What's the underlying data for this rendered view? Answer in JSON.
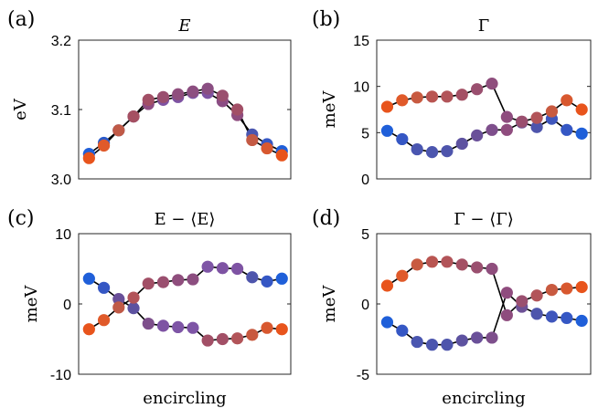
{
  "figure": {
    "xlabel_bottom": "encircling"
  },
  "chart_data": [
    {
      "panel_label": "(a)",
      "type": "scatter",
      "title": "E",
      "ylabel": "eV",
      "ylim": [
        3.0,
        3.2
      ],
      "yticks": [
        "3.0",
        "3.1",
        "3.2"
      ],
      "ytick_values": [
        3.0,
        3.1,
        3.2
      ],
      "x": [
        1,
        2,
        3,
        4,
        5,
        6,
        7,
        8,
        9,
        10,
        11,
        12,
        13,
        14
      ],
      "series": [
        {
          "values": [
            3.036,
            3.052,
            3.07,
            3.09,
            3.108,
            3.114,
            3.118,
            3.124,
            3.124,
            3.112,
            3.092,
            3.064,
            3.05,
            3.04
          ],
          "colors": [
            "#1f5fd9",
            "#2a5ac9",
            "#4a56b0",
            "#7a4e8d",
            "#8f4c82",
            "#7e52a2",
            "#7e53a3",
            "#7e55a6",
            "#7e53a3",
            "#8b4d84",
            "#8e4c7e",
            "#4a56b0",
            "#3557c4",
            "#1f5fd9"
          ]
        },
        {
          "values": [
            3.03,
            3.048,
            3.07,
            3.09,
            3.114,
            3.118,
            3.122,
            3.126,
            3.13,
            3.12,
            3.1,
            3.056,
            3.044,
            3.034
          ],
          "colors": [
            "#e8541c",
            "#e05a2a",
            "#c05a47",
            "#a55062",
            "#a24f66",
            "#9a4f6f",
            "#8f4e7d",
            "#8c4e80",
            "#8a4e82",
            "#9a4f6f",
            "#a24f66",
            "#c45a44",
            "#d8582f",
            "#e8541c"
          ]
        }
      ]
    },
    {
      "panel_label": "(b)",
      "type": "scatter",
      "title": "Γ",
      "ylabel": "meV",
      "ylim": [
        0,
        15
      ],
      "yticks": [
        "0",
        "5",
        "10",
        "15"
      ],
      "ytick_values": [
        0,
        5,
        10,
        15
      ],
      "x": [
        1,
        2,
        3,
        4,
        5,
        6,
        7,
        8,
        9,
        10,
        11,
        12,
        13,
        14
      ],
      "series": [
        {
          "values": [
            5.2,
            4.3,
            3.2,
            2.9,
            3.0,
            3.8,
            4.7,
            5.3,
            5.3,
            6.1,
            5.6,
            6.5,
            5.3,
            4.9
          ],
          "colors": [
            "#1f5fd9",
            "#3557c4",
            "#4a56b0",
            "#4c56ae",
            "#4e55ac",
            "#5d52a0",
            "#6a5099",
            "#7e4f8c",
            "#8f4c7e",
            "#6d5196",
            "#4e55ac",
            "#3f56bc",
            "#3557c4",
            "#1f5fd9"
          ]
        },
        {
          "values": [
            7.8,
            8.5,
            8.8,
            8.9,
            8.9,
            9.1,
            9.7,
            10.3,
            6.7,
            6.2,
            6.6,
            7.3,
            8.5,
            7.5
          ],
          "colors": [
            "#e8541c",
            "#e05a2a",
            "#c85a40",
            "#b95551",
            "#b25459",
            "#a45064",
            "#9a4f6f",
            "#8f4e7d",
            "#8e4c7e",
            "#9a4f6f",
            "#b25459",
            "#c85a40",
            "#d8582f",
            "#e8541c"
          ]
        }
      ]
    },
    {
      "panel_label": "(c)",
      "type": "scatter",
      "title": "E − ⟨E⟩",
      "ylabel": "meV",
      "ylim": [
        -10,
        10
      ],
      "yticks": [
        "-10",
        "0",
        "10"
      ],
      "ytick_values": [
        -10,
        0,
        10
      ],
      "x": [
        1,
        2,
        3,
        4,
        5,
        6,
        7,
        8,
        9,
        10,
        11,
        12,
        13,
        14
      ],
      "series": [
        {
          "values": [
            3.6,
            2.3,
            0.7,
            -0.6,
            -2.8,
            -3.1,
            -3.3,
            -3.4,
            -5.2,
            -5.0,
            -4.9,
            -4.4,
            -3.4,
            -3.6
          ],
          "colors": [
            "#1f5fd9",
            "#3557c4",
            "#6a5099",
            "#5d52a0",
            "#7e4f8c",
            "#7e53a3",
            "#7e55a6",
            "#7e55a6",
            "#a24f66",
            "#a24f66",
            "#b25459",
            "#c85a40",
            "#d8582f",
            "#e8541c"
          ]
        },
        {
          "values": [
            -3.6,
            -2.3,
            -0.5,
            0.9,
            2.9,
            3.1,
            3.4,
            3.5,
            5.3,
            5.1,
            5.0,
            3.8,
            3.2,
            3.6
          ],
          "colors": [
            "#e8541c",
            "#e05a2a",
            "#c05a47",
            "#b25459",
            "#a24f66",
            "#9a4f6f",
            "#8f4e7d",
            "#8c4e80",
            "#7e55a6",
            "#7e53a3",
            "#7e53a3",
            "#4e55ac",
            "#3557c4",
            "#1f5fd9"
          ]
        }
      ]
    },
    {
      "panel_label": "(d)",
      "type": "scatter",
      "title": "Γ − ⟨Γ⟩",
      "ylabel": "meV",
      "ylim": [
        -5,
        5
      ],
      "yticks": [
        "-5",
        "0",
        "5"
      ],
      "ytick_values": [
        -5,
        0,
        5
      ],
      "x": [
        1,
        2,
        3,
        4,
        5,
        6,
        7,
        8,
        9,
        10,
        11,
        12,
        13,
        14
      ],
      "series": [
        {
          "values": [
            -1.3,
            -1.9,
            -2.7,
            -2.9,
            -2.9,
            -2.6,
            -2.4,
            -2.4,
            0.8,
            -0.2,
            -0.7,
            -0.9,
            -1.0,
            -1.2
          ],
          "colors": [
            "#1f5fd9",
            "#3557c4",
            "#4a56b0",
            "#4c56ae",
            "#4e55ac",
            "#5d52a0",
            "#6a5099",
            "#7e4f8c",
            "#8f4c7e",
            "#6d5196",
            "#4e55ac",
            "#3f56bc",
            "#3557c4",
            "#1f5fd9"
          ]
        },
        {
          "values": [
            1.3,
            2.0,
            2.8,
            3.0,
            3.0,
            2.8,
            2.6,
            2.5,
            -0.8,
            0.2,
            0.6,
            1.0,
            1.1,
            1.2
          ],
          "colors": [
            "#e8541c",
            "#e05a2a",
            "#c85a40",
            "#b95551",
            "#b25459",
            "#a45064",
            "#9a4f6f",
            "#8f4e7d",
            "#8e4c7e",
            "#9a4f6f",
            "#b25459",
            "#c85a40",
            "#d8582f",
            "#e8541c"
          ]
        }
      ]
    }
  ]
}
